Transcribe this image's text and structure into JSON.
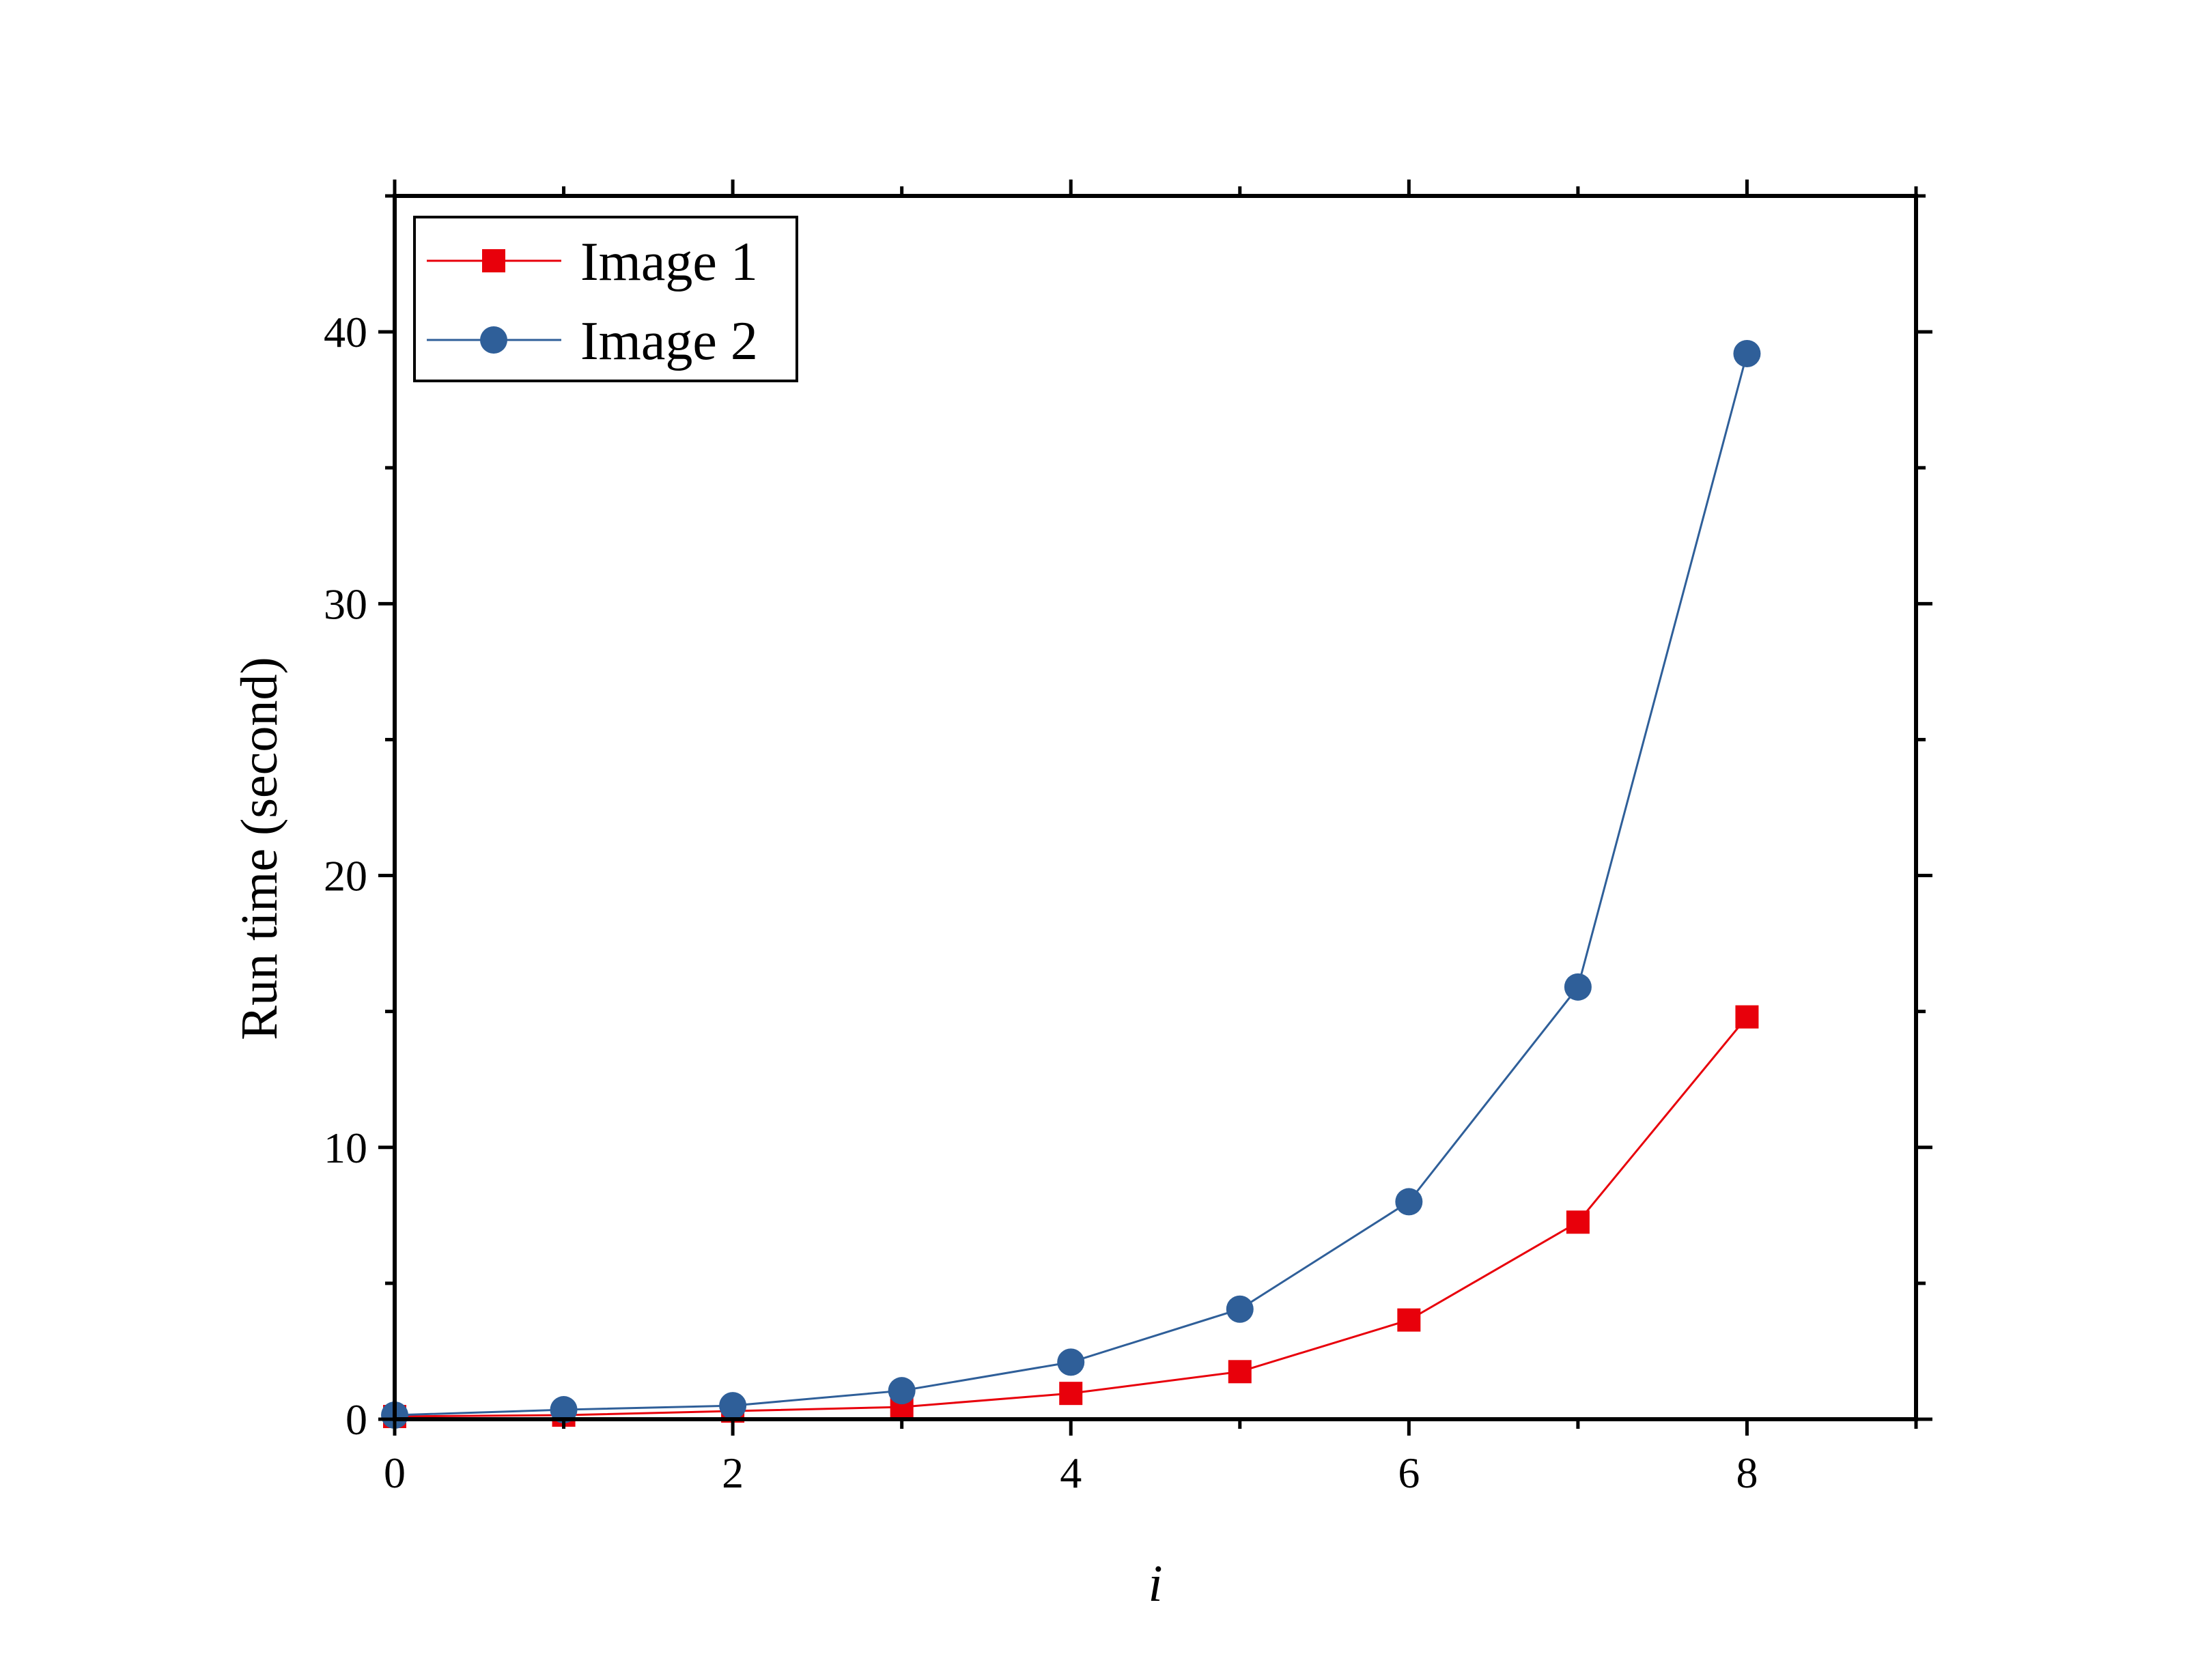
{
  "chart_data": {
    "type": "line",
    "title": "",
    "xlabel": "i",
    "ylabel": "Run time (second)",
    "xlim": [
      0,
      9
    ],
    "ylim": [
      0,
      45
    ],
    "x_ticks": [
      0,
      2,
      4,
      6,
      8
    ],
    "x_tick_labels": [
      "0",
      "2",
      "4",
      "6",
      "8"
    ],
    "y_ticks": [
      0,
      10,
      20,
      30,
      40
    ],
    "y_tick_labels": [
      "0",
      "10",
      "20",
      "30",
      "40"
    ],
    "grid": false,
    "legend_position": "top-left",
    "x": [
      0,
      1,
      2,
      3,
      4,
      5,
      6,
      7,
      8
    ],
    "series": [
      {
        "name": "Image 1",
        "marker": "square",
        "color": "#e8000b",
        "values": [
          0.1,
          0.15,
          0.3,
          0.45,
          0.95,
          1.75,
          3.65,
          7.25,
          14.8
        ]
      },
      {
        "name": "Image 2",
        "marker": "circle",
        "color": "#2f5f99",
        "values": [
          0.15,
          0.35,
          0.5,
          1.05,
          2.1,
          4.05,
          8.0,
          15.9,
          39.2
        ]
      }
    ]
  }
}
